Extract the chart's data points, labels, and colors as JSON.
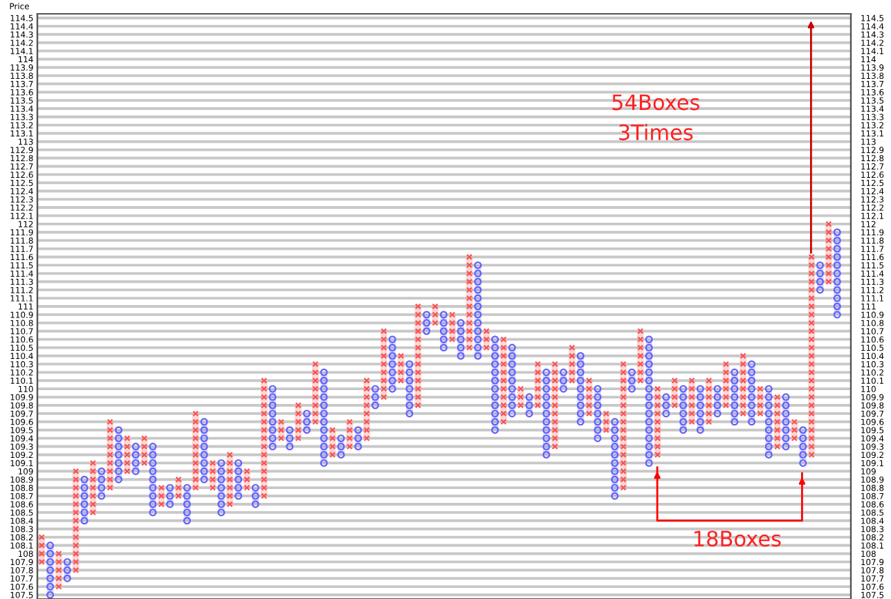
{
  "chart_data": {
    "type": "bar",
    "ylabel": "Price",
    "categories": [
      null,
      null,
      null,
      null,
      null,
      null,
      null,
      null,
      null,
      null,
      null,
      null,
      null,
      null,
      null,
      null,
      null,
      null,
      null,
      null,
      null,
      null,
      null,
      null,
      null,
      null,
      null,
      null,
      null,
      null,
      null,
      null,
      null,
      null,
      null,
      null,
      null,
      null,
      null,
      null,
      null,
      null,
      null,
      null,
      null,
      null,
      null,
      null,
      null,
      null,
      null,
      null,
      null,
      null,
      null,
      null,
      null,
      null,
      null,
      null,
      null,
      null,
      null,
      null,
      null,
      null,
      null,
      null,
      null,
      null,
      null,
      null,
      null,
      null,
      null,
      null,
      null,
      null,
      null,
      null,
      null,
      null,
      null,
      null,
      null,
      null,
      null,
      null,
      null,
      null,
      null,
      null,
      null,
      null
    ],
    "base": [
      107.9,
      107.5,
      107.6,
      107.7,
      107.8,
      108.4,
      108.5,
      108.7,
      108.8,
      108.9,
      109.0,
      109.0,
      109.1,
      108.5,
      108.6,
      108.6,
      108.7,
      108.4,
      108.8,
      108.9,
      108.8,
      108.5,
      108.6,
      108.7,
      108.8,
      108.6,
      108.7,
      109.3,
      109.4,
      109.3,
      109.4,
      109.5,
      109.6,
      109.1,
      109.2,
      109.2,
      109.3,
      109.3,
      109.4,
      109.8,
      109.9,
      110.0,
      110.1,
      109.7,
      109.8,
      110.7,
      110.8,
      110.5,
      110.6,
      110.4,
      110.5,
      110.4,
      110.5,
      109.5,
      109.6,
      109.7,
      109.8,
      109.7,
      109.8,
      109.2,
      109.3,
      110.0,
      110.1,
      109.6,
      109.7,
      109.4,
      109.5,
      108.7,
      108.8,
      110.0,
      110.1,
      109.1,
      109.2,
      109.7,
      109.8,
      109.5,
      109.6,
      109.5,
      109.6,
      109.7,
      109.8,
      109.6,
      109.7,
      109.6,
      109.7,
      109.2,
      109.3,
      109.3,
      109.4,
      109.1,
      109.2,
      111.2,
      111.3,
      110.9
    ],
    "values": [
      0.3,
      0.6,
      0.4,
      0.2,
      1.2,
      0.5,
      0.6,
      0.3,
      0.8,
      0.6,
      0.4,
      0.3,
      0.3,
      0.8,
      0.2,
      0.2,
      0.2,
      0.4,
      0.9,
      0.7,
      0.3,
      0.6,
      0.6,
      0.4,
      0.2,
      0.2,
      1.4,
      0.7,
      0.2,
      0.2,
      0.4,
      0.2,
      0.7,
      1.1,
      0.3,
      0.2,
      0.3,
      0.2,
      0.7,
      0.2,
      0.8,
      0.6,
      0.3,
      0.6,
      1.2,
      0.2,
      0.2,
      0.4,
      0.3,
      0.4,
      1.1,
      1.1,
      0.2,
      1.1,
      1.0,
      0.8,
      0.2,
      0.2,
      0.5,
      1.0,
      1.0,
      0.2,
      0.4,
      0.8,
      0.4,
      0.6,
      0.2,
      0.9,
      1.5,
      0.2,
      0.6,
      1.5,
      0.8,
      0.2,
      0.3,
      0.5,
      0.5,
      0.5,
      0.5,
      0.3,
      0.5,
      0.6,
      0.7,
      0.7,
      0.3,
      0.8,
      0.6,
      0.6,
      0.2,
      0.4,
      2.4,
      0.3,
      0.7,
      1.0
    ],
    "colors": [
      "#ff5050",
      "#6060ff",
      "#ff5050",
      "#6060ff",
      "#ff5050",
      "#6060ff",
      "#ff5050",
      "#6060ff",
      "#ff5050",
      "#6060ff",
      "#ff5050",
      "#6060ff",
      "#ff5050",
      "#6060ff",
      "#ff5050",
      "#6060ff",
      "#ff5050",
      "#6060ff",
      "#ff5050",
      "#6060ff",
      "#ff5050",
      "#6060ff",
      "#ff5050",
      "#6060ff",
      "#ff5050",
      "#6060ff",
      "#ff5050",
      "#6060ff",
      "#ff5050",
      "#6060ff",
      "#ff5050",
      "#6060ff",
      "#ff5050",
      "#6060ff",
      "#ff5050",
      "#6060ff",
      "#ff5050",
      "#6060ff",
      "#ff5050",
      "#6060ff",
      "#ff5050",
      "#6060ff",
      "#ff5050",
      "#6060ff",
      "#ff5050",
      "#6060ff",
      "#ff5050",
      "#6060ff",
      "#ff5050",
      "#6060ff",
      "#ff5050",
      "#6060ff",
      "#ff5050",
      "#6060ff",
      "#ff5050",
      "#6060ff",
      "#ff5050",
      "#6060ff",
      "#ff5050",
      "#6060ff",
      "#ff5050",
      "#6060ff",
      "#ff5050",
      "#6060ff",
      "#ff5050",
      "#6060ff",
      "#ff5050",
      "#6060ff",
      "#ff5050",
      "#6060ff",
      "#ff5050",
      "#6060ff",
      "#ff5050",
      "#6060ff",
      "#ff5050",
      "#6060ff",
      "#ff5050",
      "#6060ff",
      "#ff5050",
      "#6060ff",
      "#ff5050",
      "#6060ff",
      "#ff5050",
      "#6060ff",
      "#ff5050",
      "#6060ff",
      "#ff5050",
      "#6060ff",
      "#ff5050",
      "#6060ff",
      "#ff5050",
      "#6060ff",
      "#ff5050",
      "#6060ff"
    ],
    "ylim": [
      107.45,
      114.55
    ],
    "yticks": [
      107.5,
      107.6,
      107.7,
      107.8,
      107.9,
      108,
      108.1,
      108.2,
      108.3,
      108.4,
      108.5,
      108.6,
      108.7,
      108.8,
      108.9,
      109,
      109.1,
      109.2,
      109.3,
      109.4,
      109.5,
      109.6,
      109.7,
      109.8,
      109.9,
      110,
      110.1,
      110.2,
      110.3,
      110.4,
      110.5,
      110.6,
      110.7,
      110.8,
      110.9,
      111,
      111.1,
      111.2,
      111.3,
      111.4,
      111.5,
      111.6,
      111.7,
      111.8,
      111.9,
      112,
      112.1,
      112.2,
      112.3,
      112.4,
      112.5,
      112.6,
      112.7,
      112.8,
      112.9,
      113,
      113.1,
      113.2,
      113.3,
      113.4,
      113.5,
      113.6,
      113.7,
      113.8,
      113.9,
      114,
      114.1,
      114.2,
      114.3,
      114.4,
      114.5
    ],
    "y2lim": [
      107.45,
      114.55
    ],
    "y2ticks": [
      107.5,
      107.6,
      107.7,
      107.8,
      107.9,
      108,
      108.1,
      108.2,
      108.3,
      108.4,
      108.5,
      108.6,
      108.7,
      108.8,
      108.9,
      109,
      109.1,
      109.2,
      109.3,
      109.4,
      109.5,
      109.6,
      109.7,
      109.8,
      109.9,
      110,
      110.1,
      110.2,
      110.3,
      110.4,
      110.5,
      110.6,
      110.7,
      110.8,
      110.9,
      111,
      111.1,
      111.2,
      111.3,
      111.4,
      111.5,
      111.6,
      111.7,
      111.8,
      111.9,
      112,
      112.1,
      112.2,
      112.3,
      112.4,
      112.5,
      112.6,
      112.7,
      112.8,
      112.9,
      113,
      113.1,
      113.2,
      113.3,
      113.4,
      113.5,
      113.6,
      113.7,
      113.8,
      113.9,
      114,
      114.1,
      114.2,
      114.3,
      114.4,
      114.5
    ],
    "grid": "y",
    "tick_labels": "y",
    "annotations": [
      "54Boxes\n3Times",
      "18Boxes"
    ]
  }
}
